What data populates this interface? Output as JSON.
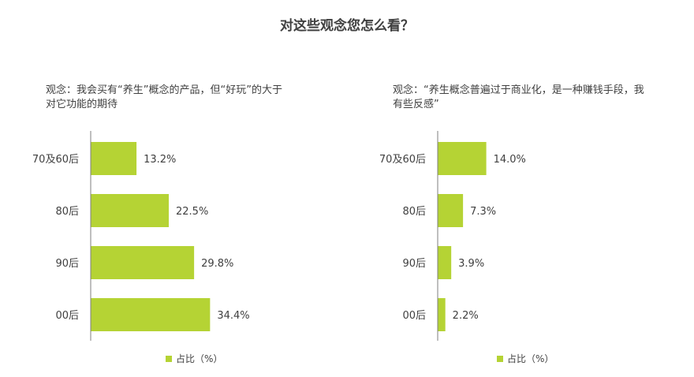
{
  "title": "对这些观念您怎么看？",
  "colors": {
    "bar": "#b5d334",
    "axis": "#7f7f7f"
  },
  "chart_data": [
    {
      "type": "bar",
      "orientation": "horizontal",
      "title": "观念：我会买有“养生”概念的产品，但“好玩”的大于对它功能的期待",
      "categories": [
        "70及60后",
        "80后",
        "90后",
        "00后"
      ],
      "series": [
        {
          "name": "占比（%）",
          "values": [
            13.2,
            22.5,
            29.8,
            34.4
          ]
        }
      ],
      "value_labels": [
        "13.2%",
        "22.5%",
        "29.8%",
        "34.4%"
      ],
      "xlim": [
        0,
        100
      ],
      "grid": false,
      "legend": "bottom"
    },
    {
      "type": "bar",
      "orientation": "horizontal",
      "title": "观念：“养生概念普遍过于商业化，是一种赚钱手段，我有些反感”",
      "categories": [
        "70及60后",
        "80后",
        "90后",
        "00后"
      ],
      "series": [
        {
          "name": "占比（%）",
          "values": [
            14.0,
            7.3,
            3.9,
            2.2
          ]
        }
      ],
      "value_labels": [
        "14.0%",
        "7.3%",
        "3.9%",
        "2.2%"
      ],
      "xlim": [
        0,
        100
      ],
      "grid": false,
      "legend": "bottom"
    }
  ]
}
